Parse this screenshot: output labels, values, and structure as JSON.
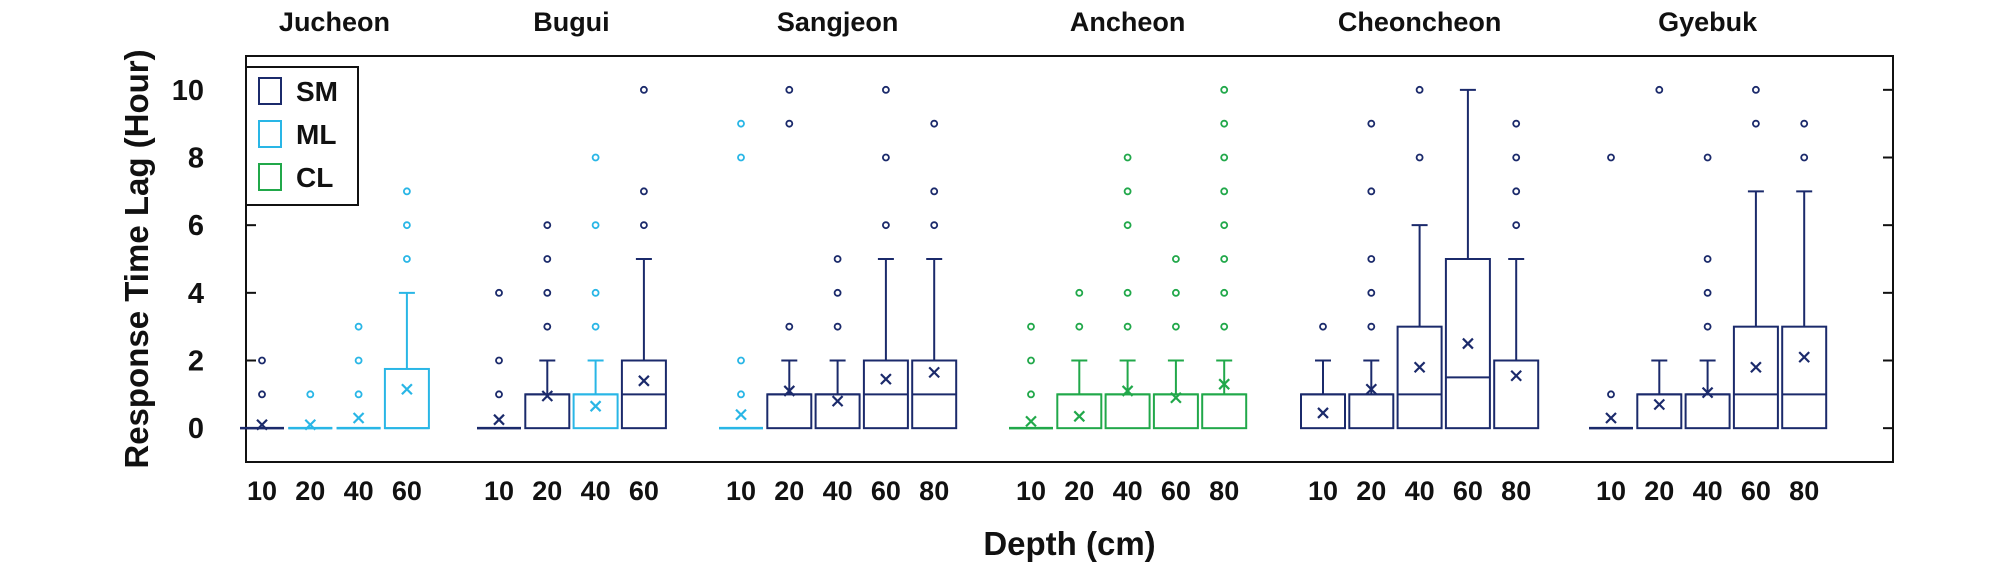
{
  "chart_data": {
    "type": "boxplot",
    "ylabel": "Response Time Lag (Hour)",
    "xlabel": "Depth (cm)",
    "ylim": [
      -1,
      11
    ],
    "yticks": [
      0,
      2,
      4,
      6,
      8,
      10
    ],
    "legend": {
      "placement": "top-left",
      "entries": [
        {
          "name": "SM",
          "color": "#1b2a6b"
        },
        {
          "name": "ML",
          "color": "#29b6e6"
        },
        {
          "name": "CL",
          "color": "#21a84a"
        }
      ]
    },
    "sites": [
      {
        "name": "Jucheon",
        "boxes": [
          {
            "depth": "10",
            "soil": "SM",
            "q1": 0,
            "median": 0,
            "q3": 0,
            "wlo": 0,
            "whi": 0,
            "mean": 0.1,
            "outliers": [
              1,
              2
            ]
          },
          {
            "depth": "20",
            "soil": "ML",
            "q1": 0,
            "median": 0,
            "q3": 0,
            "wlo": 0,
            "whi": 0,
            "mean": 0.1,
            "outliers": [
              1
            ]
          },
          {
            "depth": "40",
            "soil": "ML",
            "q1": 0,
            "median": 0,
            "q3": 0,
            "wlo": 0,
            "whi": 0,
            "mean": 0.3,
            "outliers": [
              1,
              2,
              3
            ]
          },
          {
            "depth": "60",
            "soil": "ML",
            "q1": 0,
            "median": 0,
            "q3": 1.75,
            "wlo": 0,
            "whi": 4,
            "mean": 1.15,
            "outliers": [
              5,
              6,
              7
            ]
          }
        ]
      },
      {
        "name": "Bugui",
        "boxes": [
          {
            "depth": "10",
            "soil": "SM",
            "q1": 0,
            "median": 0,
            "q3": 0,
            "wlo": 0,
            "whi": 0,
            "mean": 0.25,
            "outliers": [
              1,
              2,
              4
            ]
          },
          {
            "depth": "20",
            "soil": "SM",
            "q1": 0,
            "median": 1,
            "q3": 1,
            "wlo": 0,
            "whi": 2,
            "mean": 0.95,
            "outliers": [
              3,
              4,
              5,
              6
            ]
          },
          {
            "depth": "40",
            "soil": "ML",
            "q1": 0,
            "median": 1,
            "q3": 1,
            "wlo": 0,
            "whi": 2,
            "mean": 0.65,
            "outliers": [
              3,
              4,
              6,
              8
            ]
          },
          {
            "depth": "60",
            "soil": "SM",
            "q1": 0,
            "median": 1,
            "q3": 2,
            "wlo": 0,
            "whi": 5,
            "mean": 1.4,
            "outliers": [
              6,
              7,
              10
            ]
          }
        ]
      },
      {
        "name": "Sangjeon",
        "boxes": [
          {
            "depth": "10",
            "soil": "ML",
            "q1": 0,
            "median": 0,
            "q3": 0,
            "wlo": 0,
            "whi": 0,
            "mean": 0.4,
            "outliers": [
              1,
              2,
              8,
              9
            ]
          },
          {
            "depth": "20",
            "soil": "SM",
            "q1": 0,
            "median": 1,
            "q3": 1,
            "wlo": 0,
            "whi": 2,
            "mean": 1.1,
            "outliers": [
              3,
              9,
              10
            ]
          },
          {
            "depth": "40",
            "soil": "SM",
            "q1": 0,
            "median": 1,
            "q3": 1,
            "wlo": 0,
            "whi": 2,
            "mean": 0.8,
            "outliers": [
              3,
              4,
              5
            ]
          },
          {
            "depth": "60",
            "soil": "SM",
            "q1": 0,
            "median": 1,
            "q3": 2,
            "wlo": 0,
            "whi": 5,
            "mean": 1.45,
            "outliers": [
              6,
              8,
              10
            ]
          },
          {
            "depth": "80",
            "soil": "SM",
            "q1": 0,
            "median": 1,
            "q3": 2,
            "wlo": 0,
            "whi": 5,
            "mean": 1.65,
            "outliers": [
              6,
              7,
              9
            ]
          }
        ]
      },
      {
        "name": "Ancheon",
        "boxes": [
          {
            "depth": "10",
            "soil": "CL",
            "q1": 0,
            "median": 0,
            "q3": 0,
            "wlo": 0,
            "whi": 0,
            "mean": 0.2,
            "outliers": [
              1,
              2,
              3
            ]
          },
          {
            "depth": "20",
            "soil": "CL",
            "q1": 0,
            "median": 1,
            "q3": 1,
            "wlo": 0,
            "whi": 2,
            "mean": 0.35,
            "outliers": [
              3,
              4
            ]
          },
          {
            "depth": "40",
            "soil": "CL",
            "q1": 0,
            "median": 1,
            "q3": 1,
            "wlo": 0,
            "whi": 2,
            "mean": 1.1,
            "outliers": [
              3,
              4,
              6,
              7,
              8
            ]
          },
          {
            "depth": "60",
            "soil": "CL",
            "q1": 0,
            "median": 1,
            "q3": 1,
            "wlo": 0,
            "whi": 2,
            "mean": 0.9,
            "outliers": [
              3,
              4,
              5
            ]
          },
          {
            "depth": "80",
            "soil": "CL",
            "q1": 0,
            "median": 1,
            "q3": 1,
            "wlo": 0,
            "whi": 2,
            "mean": 1.3,
            "outliers": [
              3,
              4,
              5,
              6,
              7,
              8,
              9,
              10
            ]
          }
        ]
      },
      {
        "name": "Cheoncheon",
        "boxes": [
          {
            "depth": "10",
            "soil": "SM",
            "q1": 0,
            "median": 1,
            "q3": 1,
            "wlo": 0,
            "whi": 2,
            "mean": 0.45,
            "outliers": [
              3
            ]
          },
          {
            "depth": "20",
            "soil": "SM",
            "q1": 0,
            "median": 1,
            "q3": 1,
            "wlo": 0,
            "whi": 2,
            "mean": 1.15,
            "outliers": [
              3,
              4,
              5,
              7,
              9
            ]
          },
          {
            "depth": "40",
            "soil": "SM",
            "q1": 0,
            "median": 1,
            "q3": 3,
            "wlo": 0,
            "whi": 6,
            "mean": 1.8,
            "outliers": [
              8,
              10
            ]
          },
          {
            "depth": "60",
            "soil": "SM",
            "q1": 0,
            "median": 1.5,
            "q3": 5,
            "wlo": 0,
            "whi": 10,
            "mean": 2.5,
            "outliers": []
          },
          {
            "depth": "80",
            "soil": "SM",
            "q1": 0,
            "median": 2,
            "q3": 2,
            "wlo": 0,
            "whi": 5,
            "mean": 1.55,
            "outliers": [
              6,
              7,
              8,
              9
            ]
          }
        ]
      },
      {
        "name": "Gyebuk",
        "boxes": [
          {
            "depth": "10",
            "soil": "SM",
            "q1": 0,
            "median": 0,
            "q3": 0,
            "wlo": 0,
            "whi": 0,
            "mean": 0.3,
            "outliers": [
              1,
              8
            ]
          },
          {
            "depth": "20",
            "soil": "SM",
            "q1": 0,
            "median": 1,
            "q3": 1,
            "wlo": 0,
            "whi": 2,
            "mean": 0.7,
            "outliers": [
              10
            ]
          },
          {
            "depth": "40",
            "soil": "SM",
            "q1": 0,
            "median": 1,
            "q3": 1,
            "wlo": 0,
            "whi": 2,
            "mean": 1.05,
            "outliers": [
              3,
              4,
              5,
              8
            ]
          },
          {
            "depth": "60",
            "soil": "SM",
            "q1": 0,
            "median": 1,
            "q3": 3,
            "wlo": 0,
            "whi": 7,
            "mean": 1.8,
            "outliers": [
              9,
              10
            ]
          },
          {
            "depth": "80",
            "soil": "SM",
            "q1": 0,
            "median": 1,
            "q3": 3,
            "wlo": 0,
            "whi": 7,
            "mean": 2.1,
            "outliers": [
              8,
              9
            ]
          }
        ]
      }
    ]
  }
}
